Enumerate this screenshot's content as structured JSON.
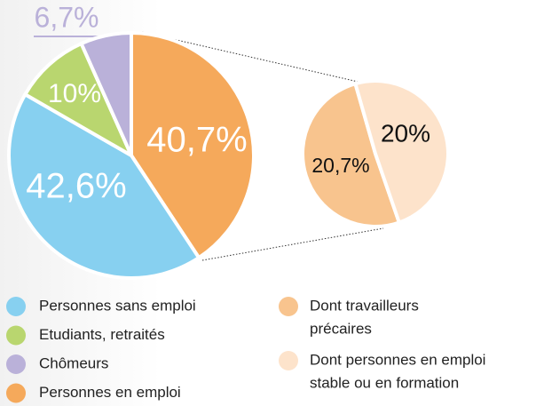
{
  "chart_data": {
    "type": "pie",
    "categories": [
      "Personnes en emploi",
      "Personnes sans emploi",
      "Etudiants, retraités",
      "Chômeurs"
    ],
    "values": [
      40.7,
      42.6,
      10,
      6.7
    ],
    "value_labels": [
      "40,7%",
      "42,6%",
      "10%",
      "6,7%"
    ],
    "colors": [
      "#f5a95b",
      "#87d0f0",
      "#b9d66f",
      "#bab1d9"
    ],
    "secondary": {
      "categories": [
        [
          "Dont travailleurs",
          "précaires"
        ],
        [
          "Dont personnes en emploi",
          "stable ou en formation"
        ]
      ],
      "values": [
        20.7,
        20
      ],
      "value_labels": [
        "20,7%",
        "20%"
      ],
      "colors": [
        "#f8c48e",
        "#fde3cb"
      ]
    }
  }
}
